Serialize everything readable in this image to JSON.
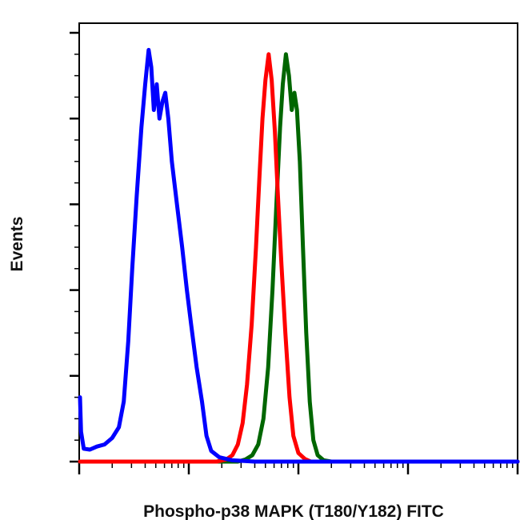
{
  "chart_data": {
    "type": "line",
    "title": "",
    "xlabel": "Phospho-p38 MAPK (T180/Y182) FITC",
    "ylabel": "Events",
    "x_scale": "log",
    "xlim": [
      1,
      10000
    ],
    "ylim": [
      0,
      1
    ],
    "y_major_ticks": 5,
    "grid": false,
    "legend": "none",
    "series": [
      {
        "color": "#0000ff",
        "points": [
          [
            1.0,
            0.15
          ],
          [
            1.04,
            0.07
          ],
          [
            1.1,
            0.03
          ],
          [
            1.25,
            0.028
          ],
          [
            1.45,
            0.035
          ],
          [
            1.7,
            0.04
          ],
          [
            2.0,
            0.055
          ],
          [
            2.3,
            0.08
          ],
          [
            2.55,
            0.14
          ],
          [
            2.8,
            0.28
          ],
          [
            3.05,
            0.45
          ],
          [
            3.35,
            0.62
          ],
          [
            3.7,
            0.78
          ],
          [
            4.0,
            0.88
          ],
          [
            4.3,
            0.96
          ],
          [
            4.55,
            0.92
          ],
          [
            4.8,
            0.82
          ],
          [
            5.1,
            0.88
          ],
          [
            5.4,
            0.8
          ],
          [
            5.75,
            0.84
          ],
          [
            6.1,
            0.86
          ],
          [
            6.5,
            0.8
          ],
          [
            7.0,
            0.7
          ],
          [
            7.8,
            0.6
          ],
          [
            8.7,
            0.5
          ],
          [
            9.6,
            0.4
          ],
          [
            10.5,
            0.32
          ],
          [
            11.8,
            0.22
          ],
          [
            13.2,
            0.14
          ],
          [
            14.5,
            0.06
          ],
          [
            16.0,
            0.025
          ],
          [
            19.0,
            0.01
          ],
          [
            25.0,
            0.003
          ],
          [
            40.0,
            0.0
          ],
          [
            10000,
            0.0
          ]
        ]
      },
      {
        "color": "#ff0000",
        "points": [
          [
            1.0,
            0.0
          ],
          [
            18.0,
            0.0
          ],
          [
            22.0,
            0.005
          ],
          [
            25.0,
            0.015
          ],
          [
            28.0,
            0.04
          ],
          [
            31.0,
            0.09
          ],
          [
            34.0,
            0.18
          ],
          [
            37.5,
            0.32
          ],
          [
            41.0,
            0.5
          ],
          [
            44.0,
            0.66
          ],
          [
            47.0,
            0.8
          ],
          [
            50.0,
            0.89
          ],
          [
            53.5,
            0.95
          ],
          [
            57.0,
            0.89
          ],
          [
            61.0,
            0.77
          ],
          [
            65.0,
            0.62
          ],
          [
            70.0,
            0.46
          ],
          [
            76.0,
            0.3
          ],
          [
            83.0,
            0.15
          ],
          [
            90.0,
            0.06
          ],
          [
            100.0,
            0.02
          ],
          [
            115.0,
            0.006
          ],
          [
            130.0,
            0.0
          ],
          [
            10000,
            0.0
          ]
        ]
      },
      {
        "color": "#006600",
        "points": [
          [
            1.0,
            0.0
          ],
          [
            28.0,
            0.0
          ],
          [
            33.0,
            0.005
          ],
          [
            38.0,
            0.015
          ],
          [
            43.0,
            0.04
          ],
          [
            48.0,
            0.1
          ],
          [
            53.0,
            0.22
          ],
          [
            58.0,
            0.4
          ],
          [
            63.0,
            0.6
          ],
          [
            68.0,
            0.78
          ],
          [
            72.0,
            0.88
          ],
          [
            77.0,
            0.95
          ],
          [
            82.0,
            0.9
          ],
          [
            87.0,
            0.82
          ],
          [
            92.0,
            0.86
          ],
          [
            97.0,
            0.82
          ],
          [
            103.0,
            0.7
          ],
          [
            110.0,
            0.5
          ],
          [
            118.0,
            0.3
          ],
          [
            127.0,
            0.14
          ],
          [
            137.0,
            0.05
          ],
          [
            150.0,
            0.015
          ],
          [
            170.0,
            0.003
          ],
          [
            200.0,
            0.0
          ],
          [
            10000,
            0.0
          ]
        ]
      }
    ]
  }
}
